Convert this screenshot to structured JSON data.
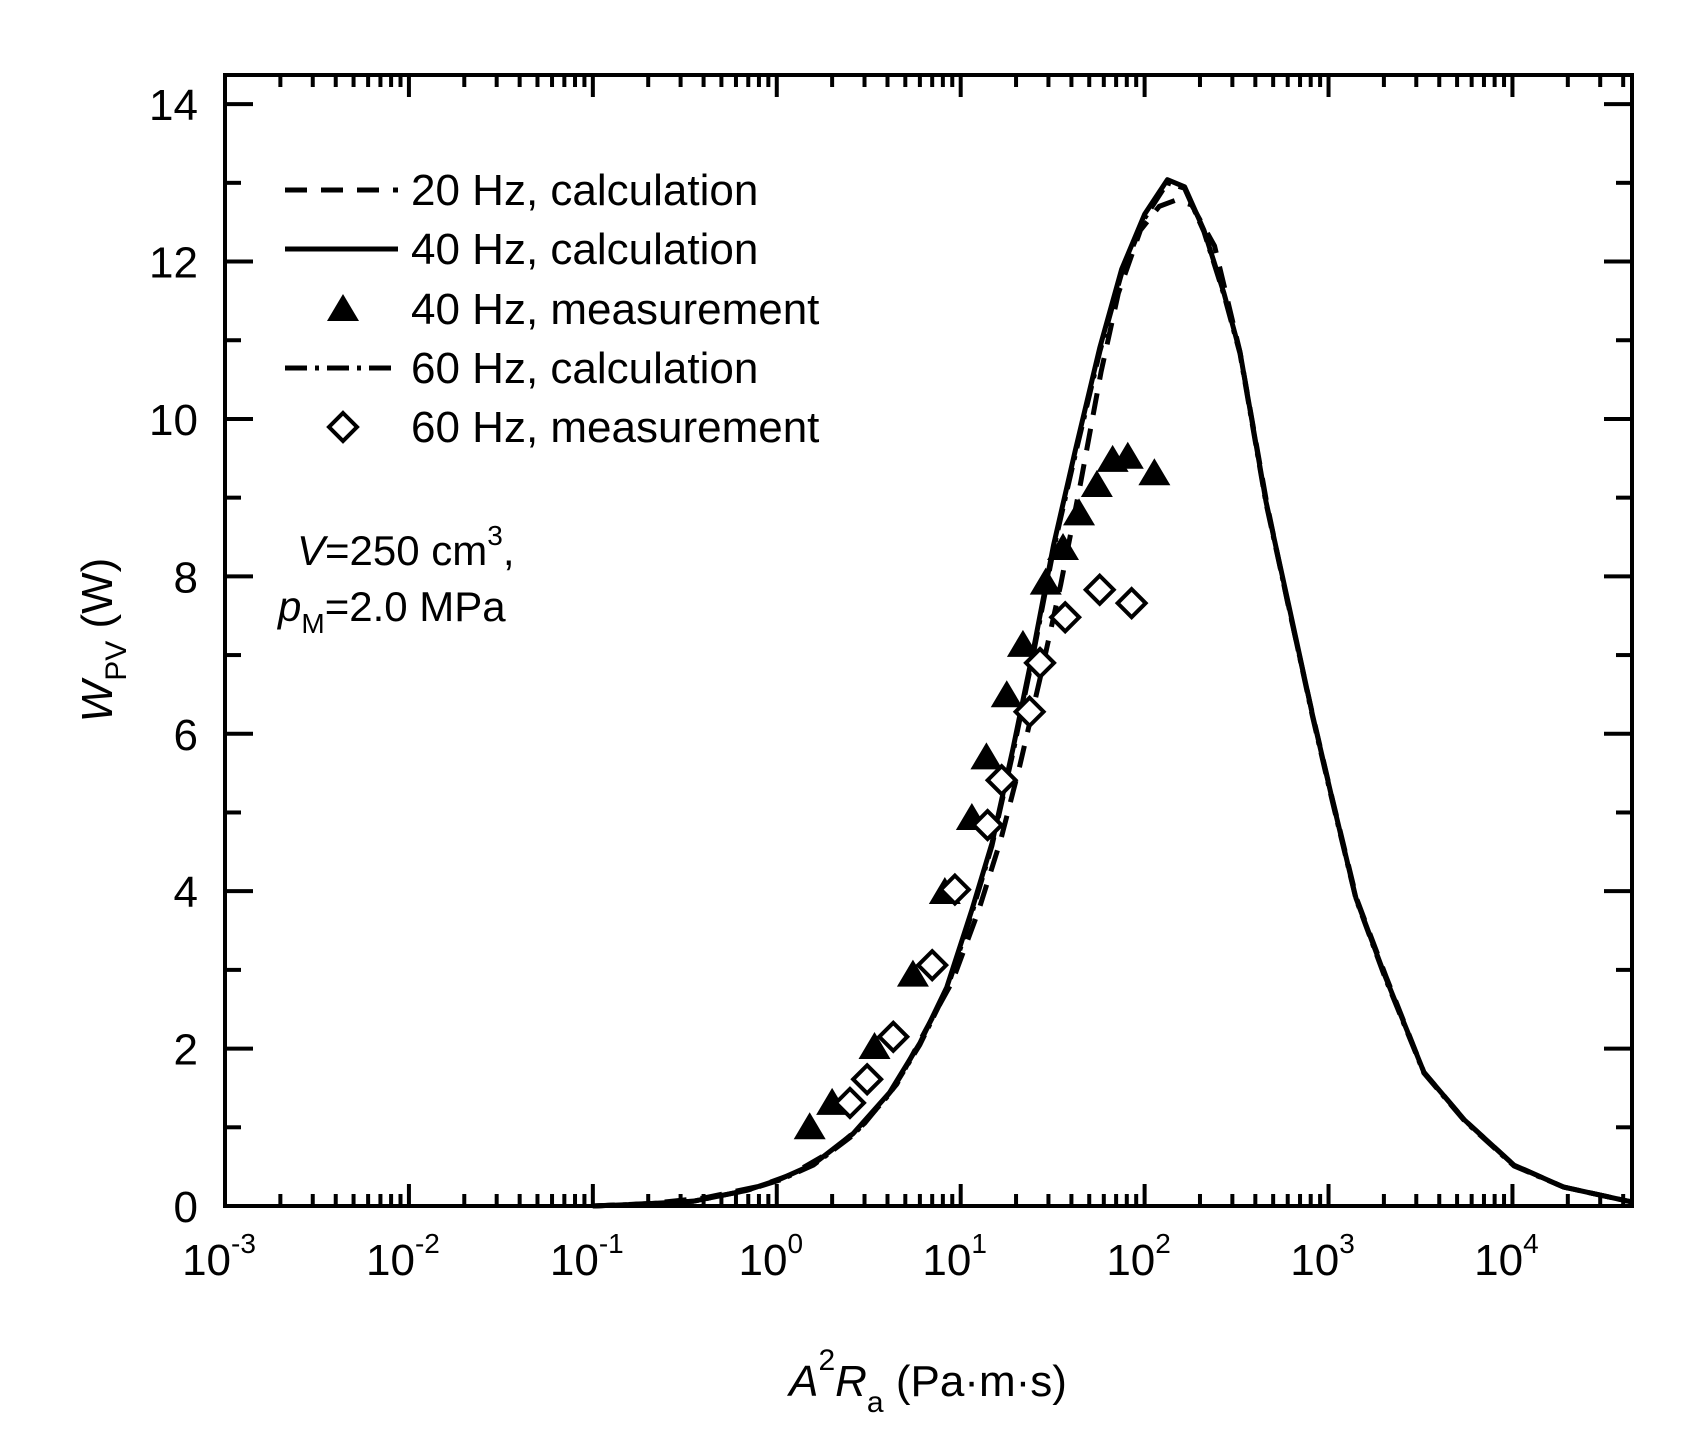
{
  "chart_data": {
    "type": "line",
    "title": "",
    "xlabel": {
      "main": "A",
      "sup": "2",
      "main2": "R",
      "sub": "a",
      "units": "(Pa·m·s)"
    },
    "ylabel": {
      "main": "W",
      "sub": "PV",
      "units": "(W)"
    },
    "xscale": "log",
    "xlim_log10": [
      -3,
      4.65
    ],
    "ylim": [
      0,
      14.37
    ],
    "grid": false,
    "x_ticks": [
      {
        "exp": -3,
        "label_base": "10",
        "label_exp": "-3"
      },
      {
        "exp": -2,
        "label_base": "10",
        "label_exp": "-2"
      },
      {
        "exp": -1,
        "label_base": "10",
        "label_exp": "-1"
      },
      {
        "exp": 0,
        "label_base": "10",
        "label_exp": "0"
      },
      {
        "exp": 1,
        "label_base": "10",
        "label_exp": "1"
      },
      {
        "exp": 2,
        "label_base": "10",
        "label_exp": "2"
      },
      {
        "exp": 3,
        "label_base": "10",
        "label_exp": "3"
      },
      {
        "exp": 4,
        "label_base": "10",
        "label_exp": "4"
      }
    ],
    "y_ticks": [
      "0",
      "2",
      "4",
      "6",
      "8",
      "10",
      "12",
      "14"
    ],
    "y_tick_values": [
      0,
      2,
      4,
      6,
      8,
      10,
      12,
      14
    ],
    "legend_position": "top-left",
    "annotation": {
      "line1_var": "V",
      "line1_rest": "=250 cm",
      "line1_sup": "3",
      "line1_tail": ",",
      "line2_var": "p",
      "line2_sub": "M",
      "line2_rest": "=2.0 MPa"
    },
    "series": [
      {
        "name": "20 Hz, calculation",
        "style": "dashed",
        "x": [
          0.1,
          0.2,
          0.4,
          0.8,
          1.2,
          2.0,
          3.0,
          4.5,
          6.5,
          9.0,
          12.5,
          16.5,
          21,
          27,
          35,
          45,
          58,
          72,
          95,
          120,
          148,
          180,
          240,
          330,
          460,
          600,
          820,
          1050,
          1420,
          2050,
          3300,
          5500,
          10200,
          19000,
          39000,
          45000
        ],
        "y": [
          0.0,
          0.03,
          0.1,
          0.25,
          0.4,
          0.7,
          1.05,
          1.55,
          2.25,
          2.85,
          3.75,
          4.65,
          5.6,
          6.7,
          7.9,
          9.2,
          10.6,
          11.6,
          12.4,
          12.7,
          12.78,
          12.72,
          12.2,
          10.85,
          8.95,
          7.66,
          6.24,
          5.17,
          3.91,
          2.92,
          1.7,
          1.09,
          0.52,
          0.24,
          0.08,
          0.05
        ]
      },
      {
        "name": "40 Hz, calculation",
        "style": "solid",
        "x": [
          0.1,
          0.17,
          0.35,
          0.69,
          1.04,
          1.58,
          2.6,
          4.1,
          6.0,
          8.4,
          11.5,
          14.8,
          19.2,
          25,
          32,
          42,
          57,
          75,
          100,
          133,
          165,
          210,
          270,
          330,
          457,
          604,
          818,
          1047,
          1410,
          2030,
          3300,
          5500,
          10200,
          19000,
          39000,
          45000
        ],
        "y": [
          0.0,
          0.02,
          0.06,
          0.2,
          0.34,
          0.53,
          0.92,
          1.44,
          2.07,
          2.78,
          3.76,
          4.61,
          5.8,
          7.1,
          8.4,
          9.6,
          10.9,
          11.9,
          12.6,
          13.04,
          12.95,
          12.4,
          11.6,
          10.85,
          8.95,
          7.66,
          6.24,
          5.17,
          3.91,
          2.92,
          1.7,
          1.09,
          0.52,
          0.24,
          0.08,
          0.05
        ]
      },
      {
        "name": "60 Hz, calculation",
        "style": "dash-dot",
        "x": [
          0.1,
          0.17,
          0.35,
          0.69,
          1.04,
          1.58,
          2.6,
          4.1,
          6.0,
          8.4,
          11.5,
          14.8,
          19.2,
          25,
          32,
          42,
          57,
          75,
          100,
          133,
          165,
          210,
          270,
          330,
          457,
          604,
          818,
          1047,
          1410,
          2030,
          3300,
          5500,
          10200,
          19000,
          39000,
          45000
        ],
        "y": [
          0.0,
          0.02,
          0.06,
          0.2,
          0.33,
          0.52,
          0.9,
          1.42,
          2.05,
          2.75,
          3.72,
          4.58,
          5.75,
          7.05,
          8.35,
          9.55,
          10.85,
          11.85,
          12.55,
          13.0,
          12.93,
          12.38,
          11.58,
          10.83,
          8.93,
          7.64,
          6.22,
          5.15,
          3.9,
          2.9,
          1.69,
          1.08,
          0.51,
          0.24,
          0.08,
          0.05
        ]
      },
      {
        "name": "40 Hz, measurement",
        "style": "marker-filled-triangle",
        "x": [
          1.51,
          2.0,
          3.4,
          5.5,
          8.2,
          11.5,
          13.8,
          17.8,
          21.8,
          29,
          36,
          44,
          55,
          67,
          81,
          113
        ],
        "y": [
          1.0,
          1.31,
          2.02,
          2.94,
          3.99,
          4.93,
          5.7,
          6.49,
          7.13,
          7.92,
          8.36,
          8.8,
          9.16,
          9.48,
          9.52,
          9.31
        ]
      },
      {
        "name": "60 Hz, measurement",
        "style": "marker-open-diamond",
        "x": [
          2.5,
          3.1,
          4.3,
          7.0,
          9.3,
          14.0,
          16.7,
          23.7,
          27,
          37,
          57,
          85
        ],
        "y": [
          1.31,
          1.61,
          2.15,
          3.06,
          4.02,
          4.84,
          5.41,
          6.28,
          6.9,
          7.48,
          7.83,
          7.66
        ]
      }
    ]
  }
}
